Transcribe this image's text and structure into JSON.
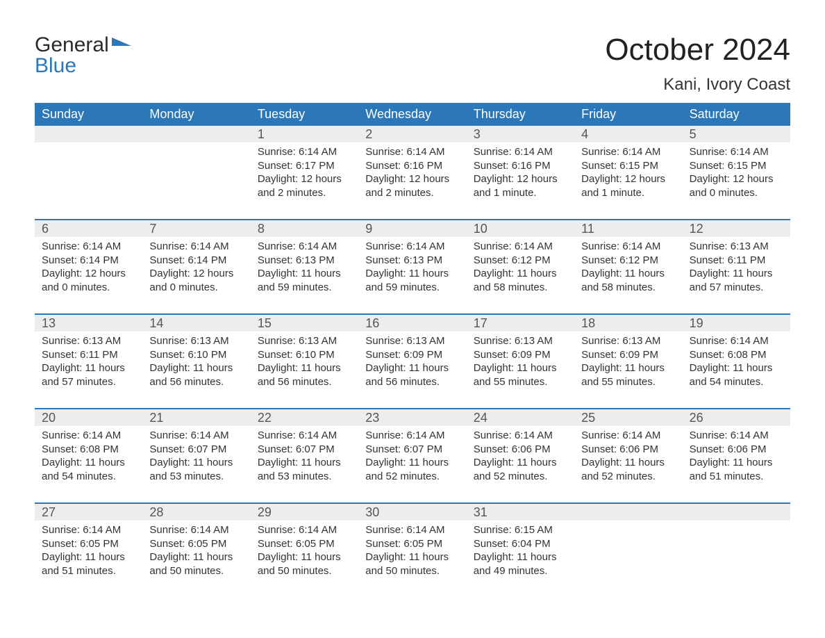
{
  "logo": {
    "word1": "General",
    "word2": "Blue"
  },
  "title": "October 2024",
  "subtitle": "Kani, Ivory Coast",
  "colors": {
    "accent": "#2c77b8",
    "daynum_bg": "#ededed",
    "text": "#333333",
    "background": "#ffffff"
  },
  "weekdays": [
    "Sunday",
    "Monday",
    "Tuesday",
    "Wednesday",
    "Thursday",
    "Friday",
    "Saturday"
  ],
  "weeks": [
    [
      {
        "day": "",
        "sunrise": "",
        "sunset": "",
        "daylight1": "",
        "daylight2": ""
      },
      {
        "day": "",
        "sunrise": "",
        "sunset": "",
        "daylight1": "",
        "daylight2": ""
      },
      {
        "day": "1",
        "sunrise": "Sunrise: 6:14 AM",
        "sunset": "Sunset: 6:17 PM",
        "daylight1": "Daylight: 12 hours",
        "daylight2": "and 2 minutes."
      },
      {
        "day": "2",
        "sunrise": "Sunrise: 6:14 AM",
        "sunset": "Sunset: 6:16 PM",
        "daylight1": "Daylight: 12 hours",
        "daylight2": "and 2 minutes."
      },
      {
        "day": "3",
        "sunrise": "Sunrise: 6:14 AM",
        "sunset": "Sunset: 6:16 PM",
        "daylight1": "Daylight: 12 hours",
        "daylight2": "and 1 minute."
      },
      {
        "day": "4",
        "sunrise": "Sunrise: 6:14 AM",
        "sunset": "Sunset: 6:15 PM",
        "daylight1": "Daylight: 12 hours",
        "daylight2": "and 1 minute."
      },
      {
        "day": "5",
        "sunrise": "Sunrise: 6:14 AM",
        "sunset": "Sunset: 6:15 PM",
        "daylight1": "Daylight: 12 hours",
        "daylight2": "and 0 minutes."
      }
    ],
    [
      {
        "day": "6",
        "sunrise": "Sunrise: 6:14 AM",
        "sunset": "Sunset: 6:14 PM",
        "daylight1": "Daylight: 12 hours",
        "daylight2": "and 0 minutes."
      },
      {
        "day": "7",
        "sunrise": "Sunrise: 6:14 AM",
        "sunset": "Sunset: 6:14 PM",
        "daylight1": "Daylight: 12 hours",
        "daylight2": "and 0 minutes."
      },
      {
        "day": "8",
        "sunrise": "Sunrise: 6:14 AM",
        "sunset": "Sunset: 6:13 PM",
        "daylight1": "Daylight: 11 hours",
        "daylight2": "and 59 minutes."
      },
      {
        "day": "9",
        "sunrise": "Sunrise: 6:14 AM",
        "sunset": "Sunset: 6:13 PM",
        "daylight1": "Daylight: 11 hours",
        "daylight2": "and 59 minutes."
      },
      {
        "day": "10",
        "sunrise": "Sunrise: 6:14 AM",
        "sunset": "Sunset: 6:12 PM",
        "daylight1": "Daylight: 11 hours",
        "daylight2": "and 58 minutes."
      },
      {
        "day": "11",
        "sunrise": "Sunrise: 6:14 AM",
        "sunset": "Sunset: 6:12 PM",
        "daylight1": "Daylight: 11 hours",
        "daylight2": "and 58 minutes."
      },
      {
        "day": "12",
        "sunrise": "Sunrise: 6:13 AM",
        "sunset": "Sunset: 6:11 PM",
        "daylight1": "Daylight: 11 hours",
        "daylight2": "and 57 minutes."
      }
    ],
    [
      {
        "day": "13",
        "sunrise": "Sunrise: 6:13 AM",
        "sunset": "Sunset: 6:11 PM",
        "daylight1": "Daylight: 11 hours",
        "daylight2": "and 57 minutes."
      },
      {
        "day": "14",
        "sunrise": "Sunrise: 6:13 AM",
        "sunset": "Sunset: 6:10 PM",
        "daylight1": "Daylight: 11 hours",
        "daylight2": "and 56 minutes."
      },
      {
        "day": "15",
        "sunrise": "Sunrise: 6:13 AM",
        "sunset": "Sunset: 6:10 PM",
        "daylight1": "Daylight: 11 hours",
        "daylight2": "and 56 minutes."
      },
      {
        "day": "16",
        "sunrise": "Sunrise: 6:13 AM",
        "sunset": "Sunset: 6:09 PM",
        "daylight1": "Daylight: 11 hours",
        "daylight2": "and 56 minutes."
      },
      {
        "day": "17",
        "sunrise": "Sunrise: 6:13 AM",
        "sunset": "Sunset: 6:09 PM",
        "daylight1": "Daylight: 11 hours",
        "daylight2": "and 55 minutes."
      },
      {
        "day": "18",
        "sunrise": "Sunrise: 6:13 AM",
        "sunset": "Sunset: 6:09 PM",
        "daylight1": "Daylight: 11 hours",
        "daylight2": "and 55 minutes."
      },
      {
        "day": "19",
        "sunrise": "Sunrise: 6:14 AM",
        "sunset": "Sunset: 6:08 PM",
        "daylight1": "Daylight: 11 hours",
        "daylight2": "and 54 minutes."
      }
    ],
    [
      {
        "day": "20",
        "sunrise": "Sunrise: 6:14 AM",
        "sunset": "Sunset: 6:08 PM",
        "daylight1": "Daylight: 11 hours",
        "daylight2": "and 54 minutes."
      },
      {
        "day": "21",
        "sunrise": "Sunrise: 6:14 AM",
        "sunset": "Sunset: 6:07 PM",
        "daylight1": "Daylight: 11 hours",
        "daylight2": "and 53 minutes."
      },
      {
        "day": "22",
        "sunrise": "Sunrise: 6:14 AM",
        "sunset": "Sunset: 6:07 PM",
        "daylight1": "Daylight: 11 hours",
        "daylight2": "and 53 minutes."
      },
      {
        "day": "23",
        "sunrise": "Sunrise: 6:14 AM",
        "sunset": "Sunset: 6:07 PM",
        "daylight1": "Daylight: 11 hours",
        "daylight2": "and 52 minutes."
      },
      {
        "day": "24",
        "sunrise": "Sunrise: 6:14 AM",
        "sunset": "Sunset: 6:06 PM",
        "daylight1": "Daylight: 11 hours",
        "daylight2": "and 52 minutes."
      },
      {
        "day": "25",
        "sunrise": "Sunrise: 6:14 AM",
        "sunset": "Sunset: 6:06 PM",
        "daylight1": "Daylight: 11 hours",
        "daylight2": "and 52 minutes."
      },
      {
        "day": "26",
        "sunrise": "Sunrise: 6:14 AM",
        "sunset": "Sunset: 6:06 PM",
        "daylight1": "Daylight: 11 hours",
        "daylight2": "and 51 minutes."
      }
    ],
    [
      {
        "day": "27",
        "sunrise": "Sunrise: 6:14 AM",
        "sunset": "Sunset: 6:05 PM",
        "daylight1": "Daylight: 11 hours",
        "daylight2": "and 51 minutes."
      },
      {
        "day": "28",
        "sunrise": "Sunrise: 6:14 AM",
        "sunset": "Sunset: 6:05 PM",
        "daylight1": "Daylight: 11 hours",
        "daylight2": "and 50 minutes."
      },
      {
        "day": "29",
        "sunrise": "Sunrise: 6:14 AM",
        "sunset": "Sunset: 6:05 PM",
        "daylight1": "Daylight: 11 hours",
        "daylight2": "and 50 minutes."
      },
      {
        "day": "30",
        "sunrise": "Sunrise: 6:14 AM",
        "sunset": "Sunset: 6:05 PM",
        "daylight1": "Daylight: 11 hours",
        "daylight2": "and 50 minutes."
      },
      {
        "day": "31",
        "sunrise": "Sunrise: 6:15 AM",
        "sunset": "Sunset: 6:04 PM",
        "daylight1": "Daylight: 11 hours",
        "daylight2": "and 49 minutes."
      },
      {
        "day": "",
        "sunrise": "",
        "sunset": "",
        "daylight1": "",
        "daylight2": ""
      },
      {
        "day": "",
        "sunrise": "",
        "sunset": "",
        "daylight1": "",
        "daylight2": ""
      }
    ]
  ]
}
